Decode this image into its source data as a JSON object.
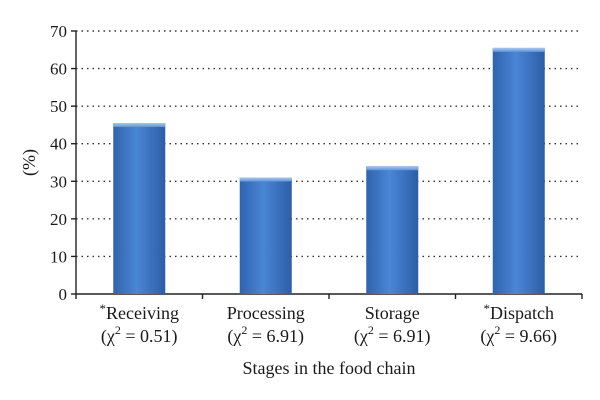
{
  "chart_data": {
    "type": "bar",
    "categories": [
      {
        "prefix": "*",
        "name": "Receiving",
        "stat": "(χ",
        "sup": "2",
        "stat_rest": " = 0.51)"
      },
      {
        "prefix": "",
        "name": "Processing",
        "stat": "(χ",
        "sup": "2",
        "stat_rest": " = 6.91)"
      },
      {
        "prefix": "",
        "name": "Storage",
        "stat": "(χ",
        "sup": "2",
        "stat_rest": " = 6.91)"
      },
      {
        "prefix": "*",
        "name": "Dispatch",
        "stat": "(χ",
        "sup": "2",
        "stat_rest": " = 9.66)"
      }
    ],
    "values": [
      45.5,
      31,
      34,
      65.5
    ],
    "xlabel": "Stages in the food chain",
    "ylabel": "(%)",
    "ylim": [
      0,
      70
    ],
    "yticks": [
      0,
      10,
      20,
      30,
      40,
      50,
      60,
      70
    ],
    "grid": true,
    "bar_color": "#3a74c4"
  }
}
